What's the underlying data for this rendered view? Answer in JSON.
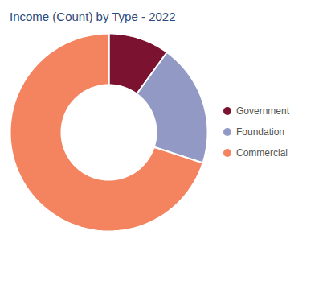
{
  "chart_data": {
    "type": "pie",
    "title": "Income (Count) by Type - 2022",
    "categories": [
      "Government",
      "Foundation",
      "Commercial"
    ],
    "values": [
      10,
      20,
      70
    ],
    "colors": [
      "#7B1230",
      "#9199C4",
      "#F4845F"
    ],
    "legend": "right"
  }
}
